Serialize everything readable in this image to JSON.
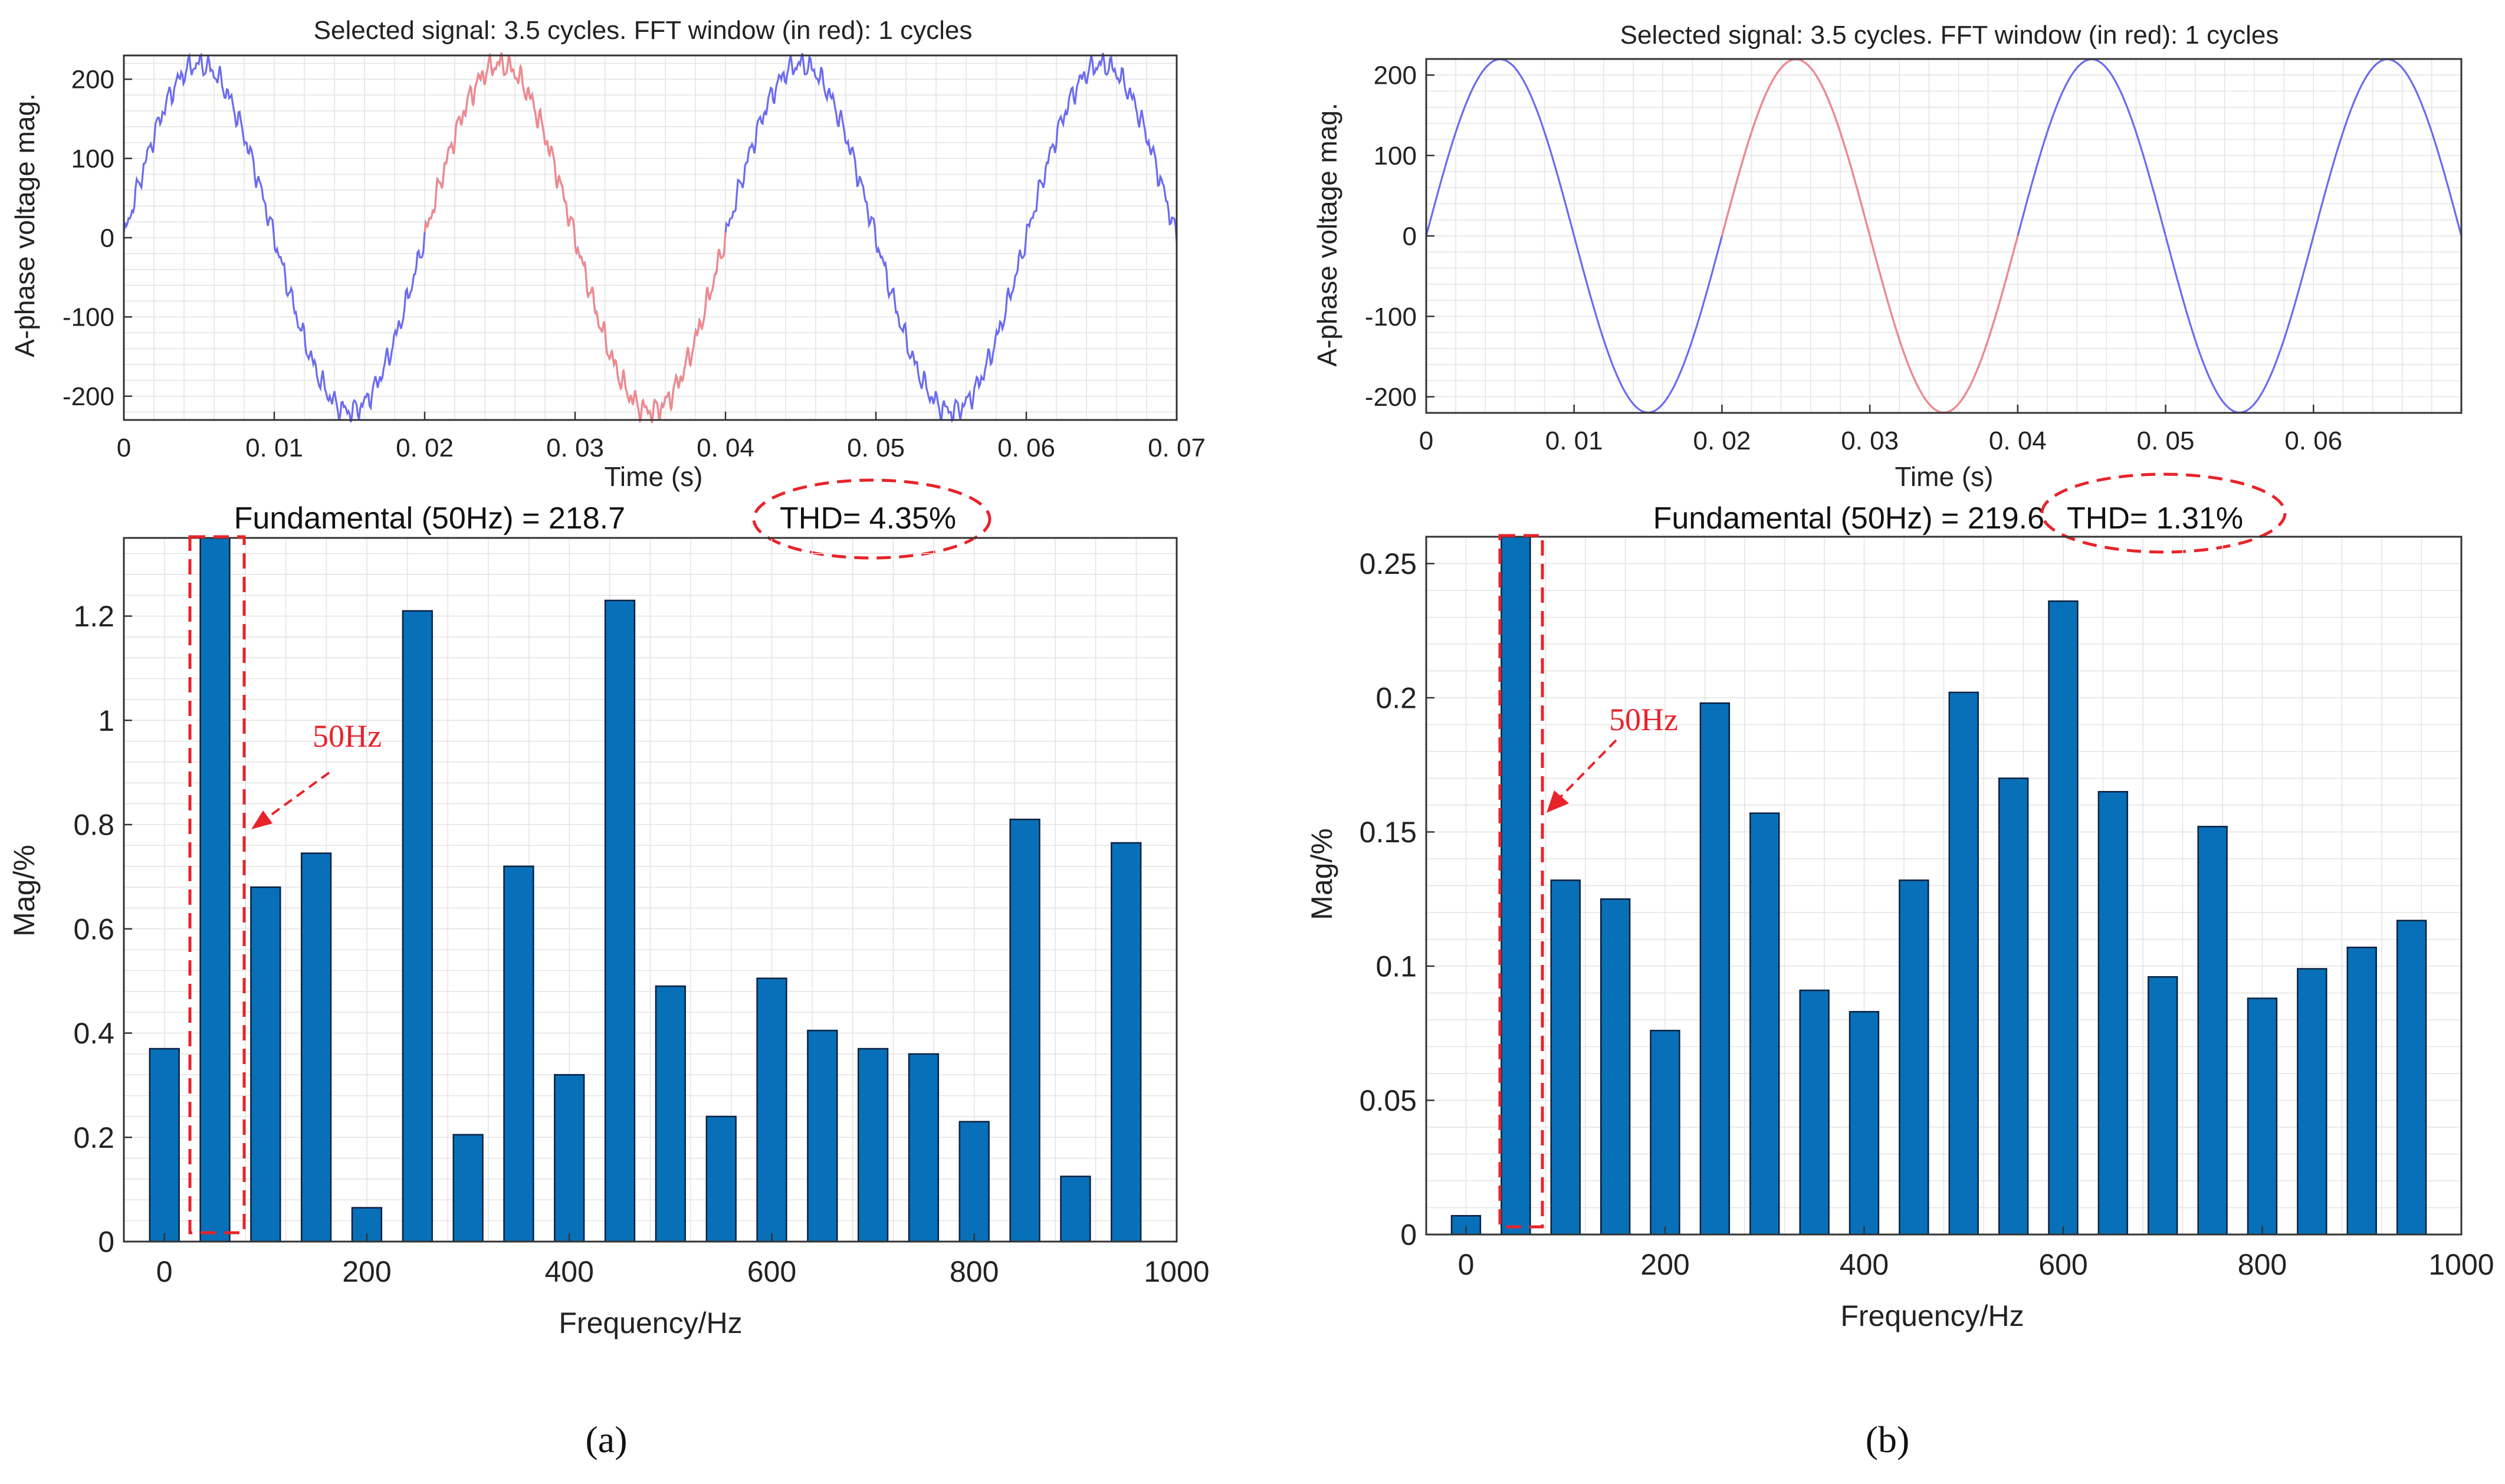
{
  "colors": {
    "wave_selected": "#6b6bf0",
    "wave_window": "#f08a8a",
    "bar_fill": "#0870b8",
    "bar_stroke": "#0a2040",
    "annotation": "#e8232a",
    "axis": "#333333",
    "grid": "#e3e3e3"
  },
  "chart_data": [
    {
      "type": "line",
      "panel": "a",
      "title": "Selected signal: 3.5 cycles. FFT window (in red): 1 cycles",
      "xlabel": "Time (s)",
      "ylabel": "A-phase voltage mag.",
      "xlim": [
        0,
        0.07
      ],
      "ylim": [
        -230,
        230
      ],
      "xticks": [
        0,
        0.01,
        0.02,
        0.03,
        0.04,
        0.05,
        0.06,
        0.07
      ],
      "xtick_labels": [
        "0",
        "0. 01",
        "0. 02",
        "0. 03",
        "0. 04",
        "0. 05",
        "0. 06",
        "0. 07"
      ],
      "yticks": [
        -200,
        -100,
        0,
        100,
        200
      ],
      "ytick_labels": [
        "-200",
        "-100",
        "0",
        "100",
        "200"
      ],
      "amplitude": 218.7,
      "frequency_hz": 50,
      "noise": true,
      "series": [
        {
          "name": "Selected signal",
          "x_range": [
            0,
            0.07
          ],
          "color": "blue"
        },
        {
          "name": "FFT window",
          "x_range": [
            0.02,
            0.04
          ],
          "color": "red"
        }
      ]
    },
    {
      "type": "bar",
      "panel": "a",
      "title_main": "Fundamental (50Hz) = 218.7",
      "title_thd": "THD= 4.35%",
      "xlabel": "Frequency/Hz",
      "ylabel": "Mag/%",
      "xlim": [
        -40,
        1000
      ],
      "ylim": [
        0,
        1.35
      ],
      "xticks": [
        0,
        200,
        400,
        600,
        800,
        1000
      ],
      "xtick_labels": [
        "0",
        "200",
        "400",
        "600",
        "800",
        "1000"
      ],
      "yticks": [
        0,
        0.2,
        0.4,
        0.6,
        0.8,
        1,
        1.2
      ],
      "ytick_labels": [
        "0",
        "0.2",
        "0.4",
        "0.6",
        "0.8",
        "1",
        "1.2"
      ],
      "x": [
        0,
        50,
        100,
        150,
        200,
        250,
        300,
        350,
        400,
        450,
        500,
        550,
        600,
        650,
        700,
        750,
        800,
        850,
        900,
        950
      ],
      "values": [
        0.37,
        1.35,
        0.68,
        0.745,
        0.065,
        1.21,
        0.205,
        0.72,
        0.32,
        1.23,
        0.49,
        0.24,
        0.505,
        0.405,
        0.37,
        0.36,
        0.23,
        0.81,
        0.125,
        0.765
      ],
      "annotation": "50Hz"
    },
    {
      "type": "line",
      "panel": "b",
      "title": "Selected signal: 3.5 cycles. FFT window (in red): 1 cycles",
      "xlabel": "Time (s)",
      "ylabel": "A-phase voltage mag.",
      "xlim": [
        0,
        0.07
      ],
      "ylim": [
        -220,
        220
      ],
      "xticks": [
        0,
        0.01,
        0.02,
        0.03,
        0.04,
        0.05,
        0.06
      ],
      "xtick_labels": [
        "0",
        "0. 01",
        "0. 02",
        "0. 03",
        "0. 04",
        "0. 05",
        "0. 06"
      ],
      "yticks": [
        -200,
        -100,
        0,
        100,
        200
      ],
      "ytick_labels": [
        "-200",
        "-100",
        "0",
        "100",
        "200"
      ],
      "amplitude": 219.6,
      "frequency_hz": 50,
      "noise": false,
      "series": [
        {
          "name": "Selected signal",
          "x_range": [
            0,
            0.07
          ],
          "color": "blue"
        },
        {
          "name": "FFT window",
          "x_range": [
            0.02,
            0.04
          ],
          "color": "red"
        }
      ]
    },
    {
      "type": "bar",
      "panel": "b",
      "title_main": "Fundamental (50Hz) = 219.6",
      "title_thd": "THD= 1.31%",
      "xlabel": "Frequency/Hz",
      "ylabel": "Mag/%",
      "xlim": [
        -40,
        1000
      ],
      "ylim": [
        0,
        0.26
      ],
      "xticks": [
        0,
        200,
        400,
        600,
        800,
        1000
      ],
      "xtick_labels": [
        "0",
        "200",
        "400",
        "600",
        "800",
        "1000"
      ],
      "yticks": [
        0,
        0.05,
        0.1,
        0.15,
        0.2,
        0.25
      ],
      "ytick_labels": [
        "0",
        "0.05",
        "0.1",
        "0.15",
        "0.2",
        "0.25"
      ],
      "x": [
        0,
        50,
        100,
        150,
        200,
        250,
        300,
        350,
        400,
        450,
        500,
        550,
        600,
        650,
        700,
        750,
        800,
        850,
        900,
        950
      ],
      "values": [
        0.007,
        0.26,
        0.132,
        0.125,
        0.076,
        0.198,
        0.157,
        0.091,
        0.083,
        0.132,
        0.202,
        0.17,
        0.236,
        0.165,
        0.096,
        0.152,
        0.088,
        0.099,
        0.107,
        0.117
      ],
      "annotation": "50Hz"
    }
  ],
  "captions": {
    "a": "(a)",
    "b": "(b)"
  }
}
